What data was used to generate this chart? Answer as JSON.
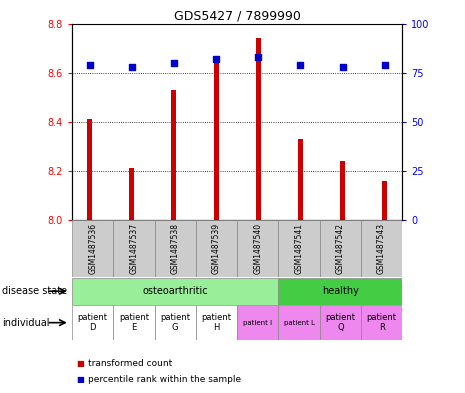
{
  "title": "GDS5427 / 7899990",
  "samples": [
    "GSM1487536",
    "GSM1487537",
    "GSM1487538",
    "GSM1487539",
    "GSM1487540",
    "GSM1487541",
    "GSM1487542",
    "GSM1487543"
  ],
  "transformed_counts": [
    8.41,
    8.21,
    8.53,
    8.65,
    8.74,
    8.33,
    8.24,
    8.16
  ],
  "percentile_ranks": [
    79,
    78,
    80,
    82,
    83,
    79,
    78,
    79
  ],
  "ylim_left": [
    8.0,
    8.8
  ],
  "ylim_right": [
    0,
    100
  ],
  "yticks_left": [
    8.0,
    8.2,
    8.4,
    8.6,
    8.8
  ],
  "yticks_right": [
    0,
    25,
    50,
    75,
    100
  ],
  "bar_color": "#cc0000",
  "dot_color": "#0000cc",
  "disease_state_groups": [
    {
      "label": "osteoarthritic",
      "start": 0,
      "end": 5,
      "color": "#99ee99"
    },
    {
      "label": "healthy",
      "start": 5,
      "end": 8,
      "color": "#44cc44"
    }
  ],
  "individual_labels": [
    "patient\nD",
    "patient\nE",
    "patient\nG",
    "patient\nH",
    "patient I",
    "patient L",
    "patient\nQ",
    "patient\nR"
  ],
  "individual_fontsize": [
    6,
    6,
    6,
    6,
    5,
    5,
    6,
    6
  ],
  "individual_colors": [
    "#ffffff",
    "#ffffff",
    "#ffffff",
    "#ffffff",
    "#ee88ee",
    "#ee88ee",
    "#ee88ee",
    "#ee88ee"
  ],
  "gsm_cell_color": "#cccccc",
  "bar_base": 8.0,
  "bar_width": 0.12,
  "background_color": "#ffffff",
  "plot_bg_color": "#ffffff",
  "grid_color": "#000000",
  "legend_items": [
    "transformed count",
    "percentile rank within the sample"
  ],
  "legend_colors": [
    "#cc0000",
    "#0000cc"
  ],
  "dot_size": 16
}
